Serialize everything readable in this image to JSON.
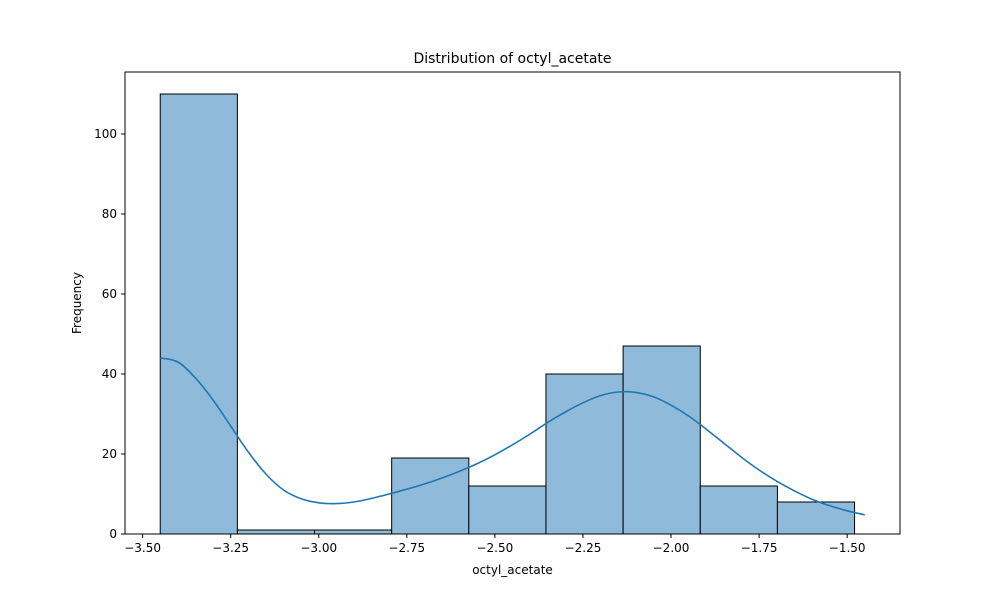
{
  "chart_data": {
    "type": "bar",
    "subtype": "histogram-with-kde",
    "title": "Distribution of octyl_acetate",
    "xlabel": "octyl_acetate",
    "ylabel": "Frequency",
    "xlim": [
      -3.55,
      -1.35
    ],
    "ylim": [
      0,
      115.5
    ],
    "xticks": [
      -3.5,
      -3.25,
      -3.0,
      -2.75,
      -2.5,
      -2.25,
      -2.0,
      -1.75,
      -1.5
    ],
    "xtick_labels": [
      "−3.50",
      "−3.25",
      "−3.00",
      "−2.75",
      "−2.50",
      "−2.25",
      "−2.00",
      "−1.75",
      "−1.50"
    ],
    "yticks": [
      0,
      20,
      40,
      60,
      80,
      100
    ],
    "ytick_labels": [
      "0",
      "20",
      "40",
      "60",
      "80",
      "100"
    ],
    "bin_edges": [
      -3.45,
      -3.231,
      -3.012,
      -2.793,
      -2.574,
      -2.355,
      -2.136,
      -1.917,
      -1.698,
      -1.479
    ],
    "values": [
      110,
      1,
      1,
      19,
      12,
      40,
      47,
      12,
      8
    ],
    "kde": {
      "x": [
        -3.45,
        -3.4,
        -3.35,
        -3.3,
        -3.25,
        -3.2,
        -3.15,
        -3.1,
        -3.05,
        -3.0,
        -2.95,
        -2.9,
        -2.85,
        -2.8,
        -2.75,
        -2.7,
        -2.65,
        -2.6,
        -2.55,
        -2.5,
        -2.45,
        -2.4,
        -2.35,
        -2.3,
        -2.25,
        -2.2,
        -2.15,
        -2.1,
        -2.05,
        -2.0,
        -1.95,
        -1.9,
        -1.85,
        -1.8,
        -1.75,
        -1.7,
        -1.65,
        -1.6,
        -1.55,
        -1.5,
        -1.45
      ],
      "y": [
        44,
        43,
        39,
        33.5,
        27,
        20.5,
        15,
        11,
        8.8,
        7.8,
        7.6,
        8,
        8.9,
        10,
        11.2,
        12.5,
        14,
        15.7,
        17.6,
        19.8,
        22.3,
        25,
        27.9,
        30.5,
        32.8,
        34.6,
        35.5,
        35.4,
        34.3,
        32.2,
        29.5,
        26.2,
        22.7,
        19.2,
        16,
        13.2,
        10.8,
        8.7,
        7.1,
        5.8,
        4.8
      ]
    },
    "colors": {
      "bar_fill": "#8fbad9",
      "bar_edge": "#000000",
      "kde_line": "#1f77b4"
    },
    "grid": false,
    "legend": "none"
  }
}
